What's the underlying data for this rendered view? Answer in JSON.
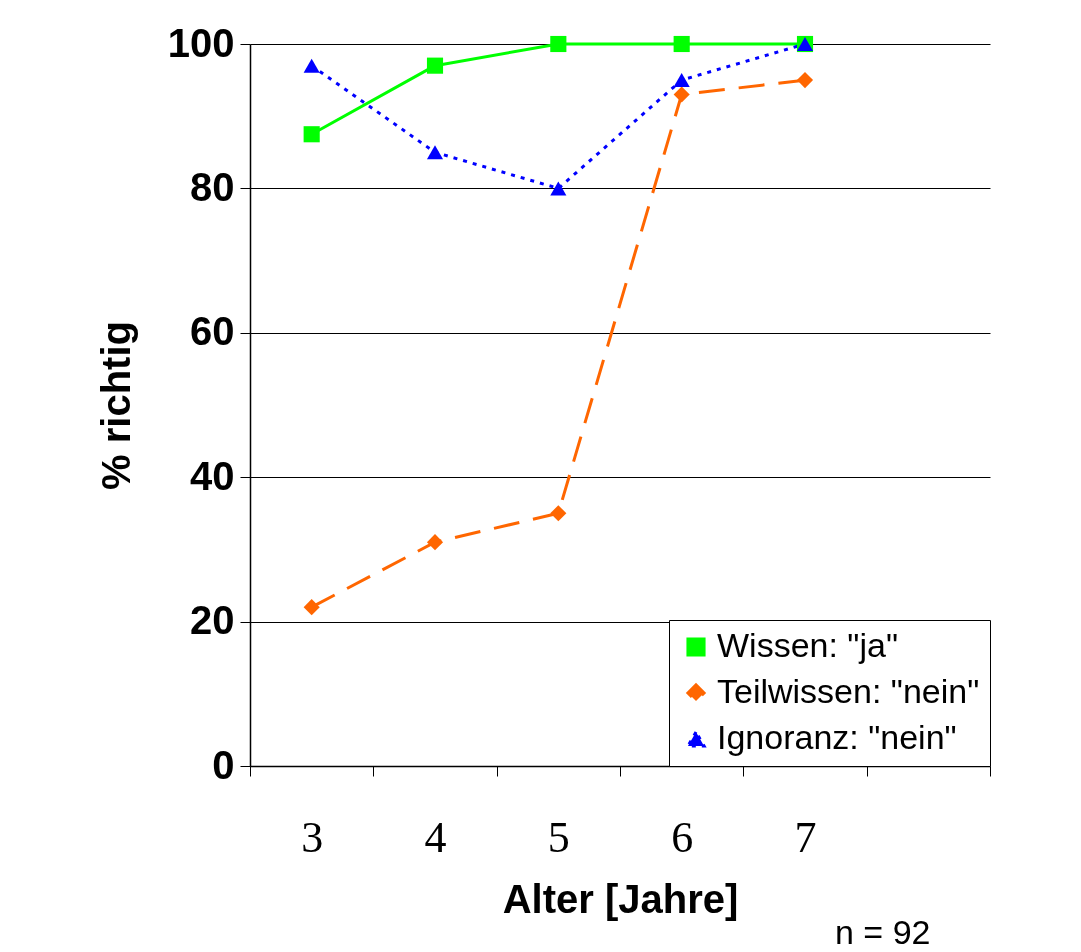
{
  "chart_data": {
    "type": "line",
    "categories": [
      "3",
      "4",
      "5",
      "6",
      "7",
      null
    ],
    "xlabel": "Alter [Jahre]",
    "ylabel": "% richtig",
    "ylim": [
      0,
      100
    ],
    "yticks": [
      0,
      20,
      40,
      60,
      80,
      100
    ],
    "grid": "y",
    "legend": "bottom right",
    "annotations": [
      "n = 92"
    ],
    "series": [
      {
        "name": "Wissen: \"ja\"",
        "color": "#00ff00",
        "marker": "square",
        "line_style": "solid",
        "values": [
          87.5,
          97,
          100,
          100,
          100,
          null
        ]
      },
      {
        "name": "Teilwissen: \"nein\"",
        "color": "#ff6600",
        "marker": "diamond",
        "line_style": "dashed",
        "values": [
          22,
          31,
          35,
          93,
          95,
          null
        ]
      },
      {
        "name": "Ignoranz: \"nein\"",
        "color": "#0000ff",
        "marker": "triangle",
        "line_style": "dotted",
        "values": [
          97,
          85,
          80,
          95,
          100,
          null
        ]
      }
    ]
  }
}
